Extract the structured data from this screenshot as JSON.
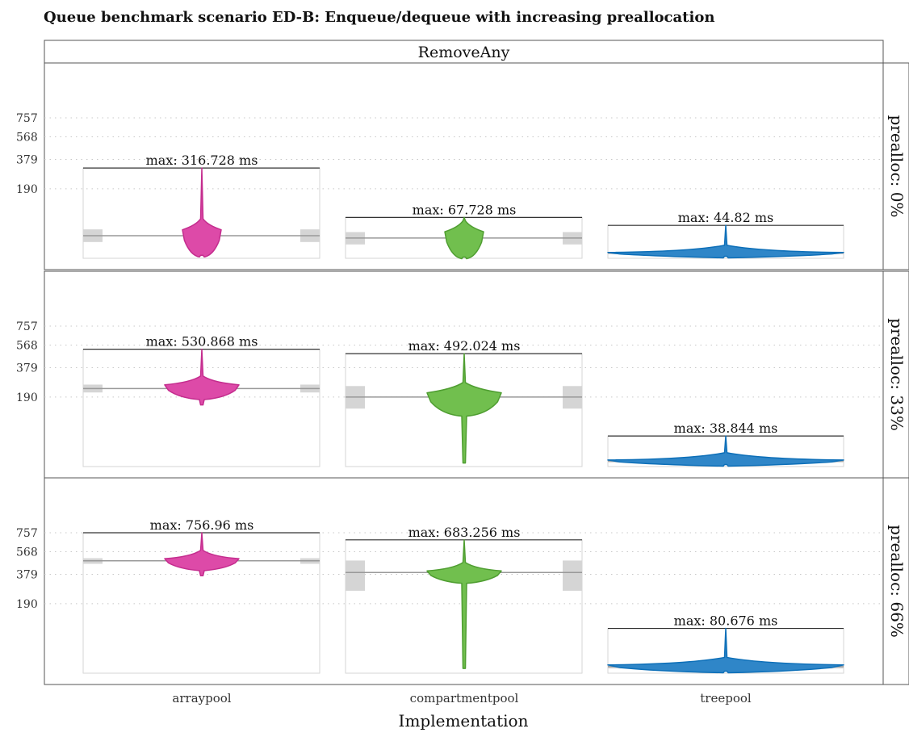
{
  "chart_data": {
    "type": "violin",
    "title": "Queue benchmark scenario ED-B: Enqueue/dequeue with increasing preallocation",
    "column_facet": "RemoveAny",
    "xlabel": "Implementation",
    "ylabel": "",
    "y_scale": "sqrt",
    "yticks": [
      190,
      379,
      568,
      757
    ],
    "ylim": [
      0,
      800
    ],
    "categories": [
      "arraypool",
      "compartmentpool",
      "treepool"
    ],
    "grid": "dotted horizontal",
    "colors": {
      "arraypool": "#dd4aa8",
      "compartmentpool": "#71bf4e",
      "treepool": "#2f86c8",
      "arraypool_stroke": "#c42d8e",
      "compartmentpool_stroke": "#4f9e31",
      "treepool_stroke": "#0d6fb8"
    },
    "rows": [
      {
        "facet_label": "prealloc: 0%",
        "series": [
          {
            "category": "arraypool",
            "max": 316.728,
            "max_label": "max: 316.728 ms",
            "min": 0.8,
            "median": 22,
            "body_top": 45,
            "body_bottom": 0.8,
            "q1": 12,
            "q3": 35
          },
          {
            "category": "compartmentpool",
            "max": 67.728,
            "max_label": "max: 67.728 ms",
            "min": 0.3,
            "median": 18,
            "body_top": 40,
            "body_bottom": 0.3,
            "q1": 9,
            "q3": 29
          },
          {
            "category": "treepool",
            "max": 44.82,
            "max_label": "max: 44.82 ms",
            "min": 0.5,
            "median": 1.8,
            "body_top": 2.5,
            "body_bottom": 0.5,
            "q1": 1.2,
            "q3": 2.3
          }
        ]
      },
      {
        "facet_label": "prealloc: 33%",
        "series": [
          {
            "category": "arraypool",
            "max": 530.868,
            "max_label": "max: 530.868 ms",
            "min": 150,
            "median": 238,
            "body_top": 275,
            "body_bottom": 185,
            "q1": 215,
            "q3": 262
          },
          {
            "category": "compartmentpool",
            "max": 492.024,
            "max_label": "max: 492.024 ms",
            "min": 1,
            "median": 190,
            "body_top": 235,
            "body_bottom": 108,
            "q1": 133,
            "q3": 253
          },
          {
            "category": "treepool",
            "max": 38.844,
            "max_label": "max: 38.844 ms",
            "min": 0.5,
            "median": 2,
            "body_top": 3,
            "body_bottom": 0.5,
            "q1": 1.2,
            "q3": 2.7
          }
        ]
      },
      {
        "facet_label": "prealloc: 66%",
        "series": [
          {
            "category": "arraypool",
            "max": 756.96,
            "max_label": "max: 756.96 ms",
            "min": 368,
            "median": 488,
            "body_top": 522,
            "body_bottom": 420,
            "q1": 462,
            "q3": 510
          },
          {
            "category": "compartmentpool",
            "max": 683.256,
            "max_label": "max: 683.256 ms",
            "min": 1.5,
            "median": 393,
            "body_top": 420,
            "body_bottom": 325,
            "q1": 265,
            "q3": 490
          },
          {
            "category": "treepool",
            "max": 80.676,
            "max_label": "max: 80.676 ms",
            "min": 0.5,
            "median": 2.5,
            "body_top": 4.5,
            "body_bottom": 0.5,
            "q1": 1.5,
            "q3": 3.5
          }
        ]
      }
    ]
  }
}
